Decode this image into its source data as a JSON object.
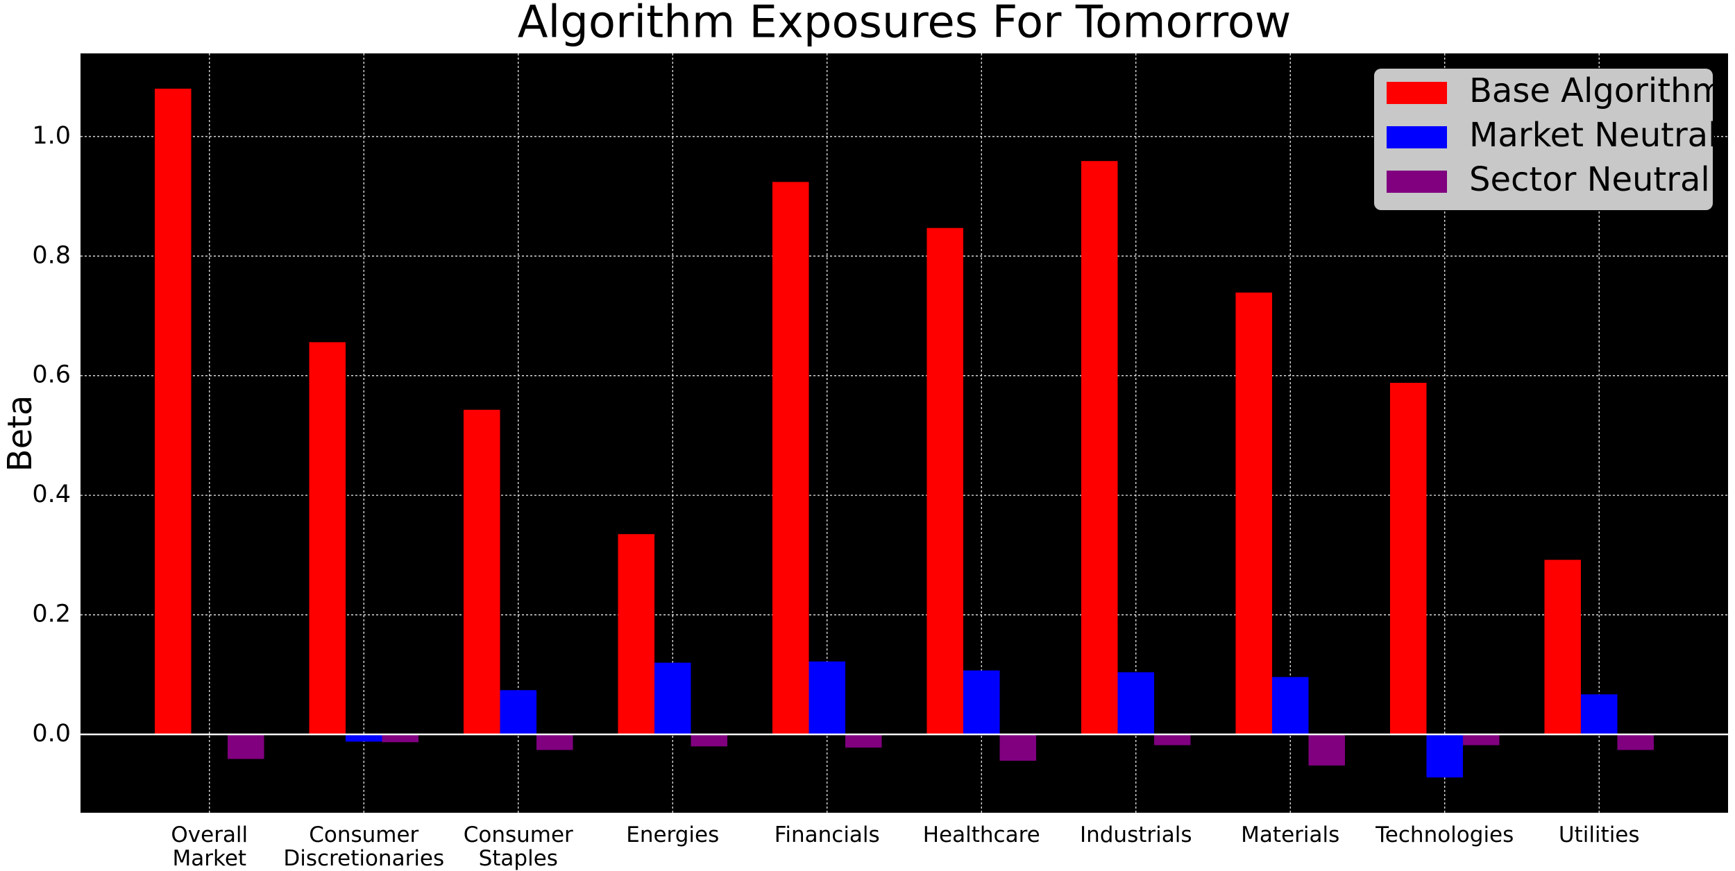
{
  "chart_data": {
    "type": "bar",
    "title": "Algorithm Exposures For Tomorrow",
    "y_label": "Beta",
    "categories": [
      "Overall\nMarket",
      "Consumer\nDiscretionaries",
      "Consumer\nStaples",
      "Energies",
      "Financials",
      "Healthcare",
      "Industrials",
      "Materials",
      "Technologies",
      "Utilities"
    ],
    "series": [
      {
        "name": "Base Algorithm",
        "color": "#ff0000",
        "values": [
          1.08,
          0.656,
          0.543,
          0.335,
          0.924,
          0.847,
          0.959,
          0.739,
          0.588,
          0.292
        ]
      },
      {
        "name": "Market Neutral",
        "color": "#0000ff",
        "values": [
          0,
          -0.012,
          0.074,
          0.12,
          0.122,
          0.107,
          0.104,
          0.096,
          -0.072,
          0.067
        ]
      },
      {
        "name": "Sector Neutral",
        "color": "#800080",
        "values": [
          -0.041,
          -0.013,
          -0.026,
          -0.02,
          -0.022,
          -0.044,
          -0.018,
          -0.052,
          -0.018,
          -0.026
        ]
      }
    ],
    "ylim": [
      -0.131,
      1.139
    ],
    "yticks": [
      {
        "value": 0,
        "label": "0.0"
      },
      0.2,
      0.4,
      0.6,
      0.8,
      {
        "value": 1,
        "label": "1.0"
      }
    ],
    "grid": true,
    "legend": "upper right"
  }
}
